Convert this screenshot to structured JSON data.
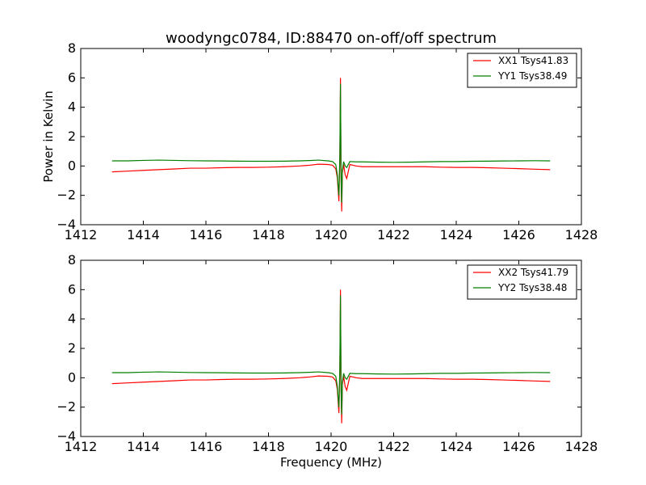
{
  "figure_title": "woodyngc0784, ID:88470 on-off/off spectrum",
  "chart_data": [
    {
      "type": "line",
      "xlim": [
        1412,
        1428
      ],
      "ylim": [
        -4,
        8
      ],
      "xticks": [
        1412,
        1414,
        1416,
        1418,
        1420,
        1422,
        1424,
        1426,
        1428
      ],
      "yticks": [
        -4,
        -2,
        0,
        2,
        4,
        6,
        8
      ],
      "xlabel": "",
      "ylabel": "Power in Kelvin",
      "legend_position": "top-right",
      "grid": false,
      "series": [
        {
          "name": "XX1 Tsys41.83",
          "color": "#ff0000",
          "x": [
            1413.0,
            1413.5,
            1414.0,
            1414.5,
            1415.0,
            1415.5,
            1416.0,
            1416.5,
            1417.0,
            1417.5,
            1418.0,
            1418.5,
            1419.0,
            1419.3,
            1419.6,
            1419.9,
            1420.05,
            1420.15,
            1420.2,
            1420.25,
            1420.28,
            1420.3,
            1420.32,
            1420.34,
            1420.36,
            1420.4,
            1420.45,
            1420.5,
            1420.6,
            1420.8,
            1421.0,
            1421.5,
            1422.0,
            1422.5,
            1423.0,
            1423.5,
            1424.0,
            1424.5,
            1425.0,
            1425.5,
            1426.0,
            1426.5,
            1427.0
          ],
          "y": [
            -0.4,
            -0.35,
            -0.3,
            -0.25,
            -0.2,
            -0.15,
            -0.15,
            -0.12,
            -0.1,
            -0.1,
            -0.08,
            -0.05,
            0.0,
            0.05,
            0.12,
            0.1,
            0.05,
            -0.2,
            -0.8,
            -2.4,
            0.5,
            6.0,
            -1.0,
            -3.1,
            -0.5,
            0.1,
            -0.6,
            -0.85,
            0.1,
            0.0,
            -0.05,
            -0.05,
            -0.05,
            -0.05,
            -0.05,
            -0.08,
            -0.1,
            -0.1,
            -0.12,
            -0.15,
            -0.18,
            -0.22,
            -0.25
          ]
        },
        {
          "name": "YY1 Tsys38.49",
          "color": "#008000",
          "x": [
            1413.0,
            1413.5,
            1414.0,
            1414.5,
            1415.0,
            1415.5,
            1416.0,
            1416.5,
            1417.0,
            1417.5,
            1418.0,
            1418.5,
            1419.0,
            1419.3,
            1419.6,
            1419.9,
            1420.05,
            1420.15,
            1420.2,
            1420.25,
            1420.28,
            1420.3,
            1420.32,
            1420.34,
            1420.36,
            1420.4,
            1420.45,
            1420.5,
            1420.6,
            1420.8,
            1421.0,
            1421.5,
            1422.0,
            1422.5,
            1423.0,
            1423.5,
            1424.0,
            1424.5,
            1425.0,
            1425.5,
            1426.0,
            1426.5,
            1427.0
          ],
          "y": [
            0.35,
            0.35,
            0.38,
            0.4,
            0.38,
            0.36,
            0.35,
            0.34,
            0.33,
            0.32,
            0.32,
            0.33,
            0.35,
            0.37,
            0.4,
            0.35,
            0.3,
            0.1,
            -0.6,
            -2.0,
            0.8,
            5.6,
            -0.8,
            -2.5,
            -0.3,
            0.3,
            0.0,
            -0.1,
            0.3,
            0.28,
            0.28,
            0.26,
            0.25,
            0.26,
            0.28,
            0.3,
            0.3,
            0.32,
            0.33,
            0.34,
            0.35,
            0.36,
            0.35
          ]
        }
      ]
    },
    {
      "type": "line",
      "xlim": [
        1412,
        1428
      ],
      "ylim": [
        -4,
        8
      ],
      "xticks": [
        1412,
        1414,
        1416,
        1418,
        1420,
        1422,
        1424,
        1426,
        1428
      ],
      "yticks": [
        -4,
        -2,
        0,
        2,
        4,
        6,
        8
      ],
      "xlabel": "Frequency (MHz)",
      "ylabel": "",
      "legend_position": "top-right",
      "grid": false,
      "series": [
        {
          "name": "XX2 Tsys41.79",
          "color": "#ff0000",
          "x": [
            1413.0,
            1413.5,
            1414.0,
            1414.5,
            1415.0,
            1415.5,
            1416.0,
            1416.5,
            1417.0,
            1417.5,
            1418.0,
            1418.5,
            1419.0,
            1419.3,
            1419.6,
            1419.9,
            1420.05,
            1420.15,
            1420.2,
            1420.25,
            1420.28,
            1420.3,
            1420.32,
            1420.34,
            1420.36,
            1420.4,
            1420.45,
            1420.5,
            1420.6,
            1420.8,
            1421.0,
            1421.5,
            1422.0,
            1422.5,
            1423.0,
            1423.5,
            1424.0,
            1424.5,
            1425.0,
            1425.5,
            1426.0,
            1426.5,
            1427.0
          ],
          "y": [
            -0.4,
            -0.35,
            -0.3,
            -0.25,
            -0.2,
            -0.15,
            -0.15,
            -0.12,
            -0.1,
            -0.1,
            -0.08,
            -0.05,
            0.0,
            0.05,
            0.12,
            0.1,
            0.05,
            -0.2,
            -0.8,
            -2.4,
            0.5,
            6.0,
            -1.0,
            -3.1,
            -0.5,
            0.1,
            -0.6,
            -0.85,
            0.1,
            0.0,
            -0.05,
            -0.05,
            -0.05,
            -0.05,
            -0.05,
            -0.08,
            -0.1,
            -0.1,
            -0.12,
            -0.15,
            -0.18,
            -0.22,
            -0.25
          ]
        },
        {
          "name": "YY2 Tsys38.48",
          "color": "#008000",
          "x": [
            1413.0,
            1413.5,
            1414.0,
            1414.5,
            1415.0,
            1415.5,
            1416.0,
            1416.5,
            1417.0,
            1417.5,
            1418.0,
            1418.5,
            1419.0,
            1419.3,
            1419.6,
            1419.9,
            1420.05,
            1420.15,
            1420.2,
            1420.25,
            1420.28,
            1420.3,
            1420.32,
            1420.34,
            1420.36,
            1420.4,
            1420.45,
            1420.5,
            1420.6,
            1420.8,
            1421.0,
            1421.5,
            1422.0,
            1422.5,
            1423.0,
            1423.5,
            1424.0,
            1424.5,
            1425.0,
            1425.5,
            1426.0,
            1426.5,
            1427.0
          ],
          "y": [
            0.35,
            0.35,
            0.38,
            0.4,
            0.38,
            0.36,
            0.35,
            0.34,
            0.33,
            0.32,
            0.32,
            0.33,
            0.35,
            0.37,
            0.4,
            0.35,
            0.3,
            0.1,
            -0.6,
            -2.0,
            0.8,
            5.6,
            -0.8,
            -2.5,
            -0.3,
            0.3,
            0.0,
            -0.1,
            0.3,
            0.28,
            0.28,
            0.26,
            0.25,
            0.26,
            0.28,
            0.3,
            0.3,
            0.32,
            0.33,
            0.34,
            0.35,
            0.36,
            0.35
          ]
        }
      ]
    }
  ]
}
